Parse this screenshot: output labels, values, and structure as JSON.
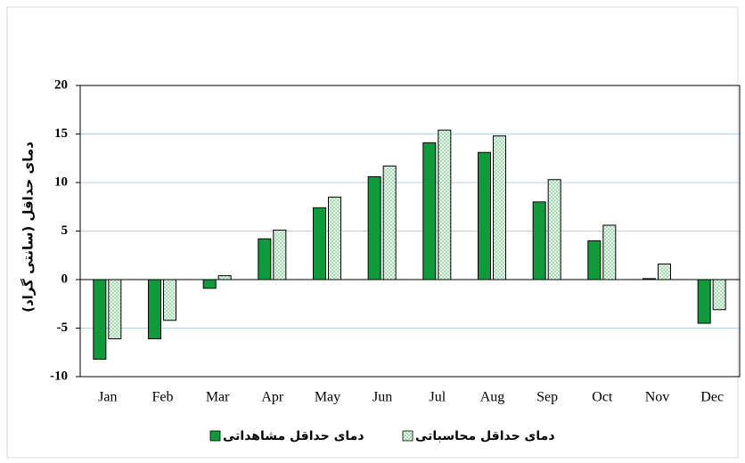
{
  "chart_data": {
    "type": "bar",
    "y_label": "دمای حداقل (سانتی گراد)",
    "categories": [
      "Jan",
      "Feb",
      "Mar",
      "Apr",
      "May",
      "Jun",
      "Jul",
      "Aug",
      "Sep",
      "Oct",
      "Nov",
      "Dec"
    ],
    "series": [
      {
        "name": "دمای حداقل مشاهداتی",
        "color": "#109a3c",
        "values": [
          -8.2,
          -6.1,
          -0.9,
          4.2,
          7.4,
          10.6,
          14.1,
          13.1,
          8.0,
          4.0,
          0.1,
          -4.5
        ]
      },
      {
        "name": "دمای حداقل محاسباتی",
        "color": "#a8dcb4",
        "values": [
          -6.1,
          -4.2,
          0.4,
          5.1,
          8.5,
          11.7,
          15.4,
          14.8,
          10.3,
          5.6,
          1.6,
          -3.1
        ]
      }
    ],
    "ylim": [
      -10,
      20
    ],
    "yticks": [
      -10,
      -5,
      0,
      5,
      10,
      15,
      20
    ],
    "grid": true
  }
}
